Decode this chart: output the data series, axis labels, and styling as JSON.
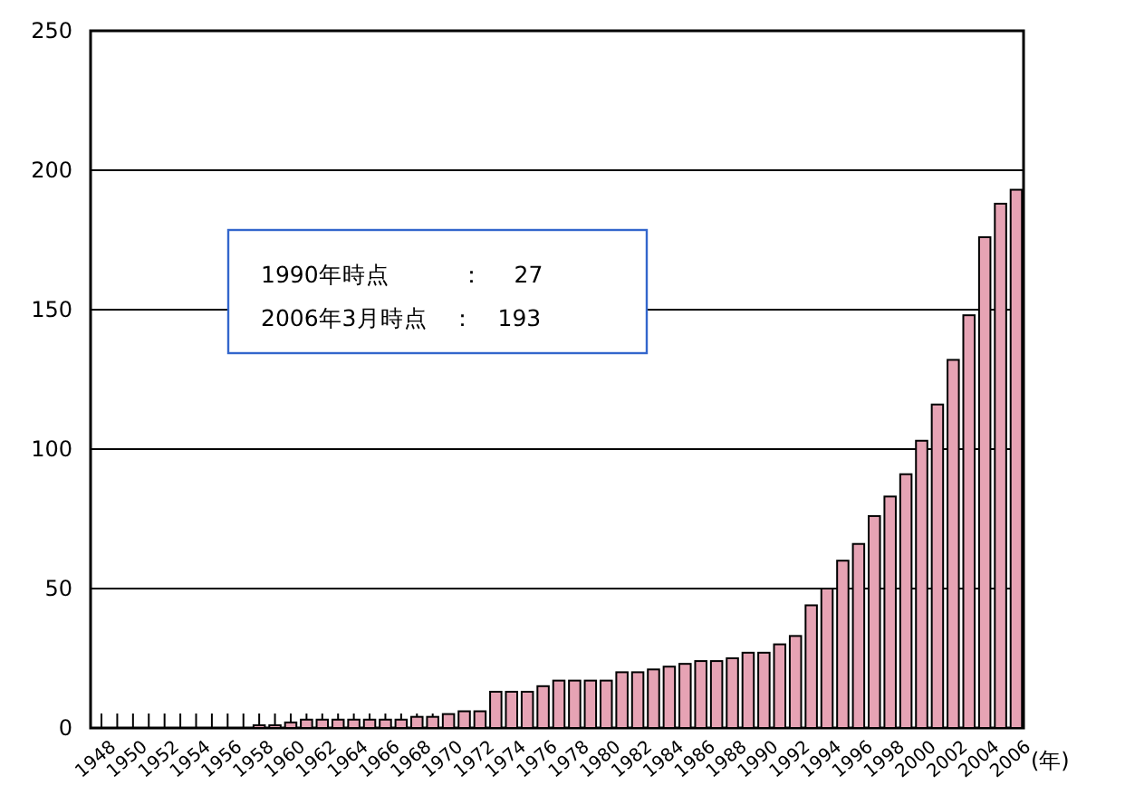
{
  "chart_data": {
    "type": "bar",
    "categories": [
      "1948",
      null,
      "1950",
      null,
      "1952",
      null,
      "1954",
      null,
      "1956",
      null,
      "1958",
      null,
      "1960",
      null,
      "1962",
      null,
      "1964",
      null,
      "1966",
      null,
      "1968",
      null,
      "1970",
      null,
      "1972",
      null,
      "1974",
      null,
      "1976",
      null,
      "1978",
      null,
      "1980",
      null,
      "1982",
      null,
      "1984",
      null,
      "1986",
      null,
      "1988",
      null,
      "1990",
      null,
      "1992",
      null,
      "1994",
      null,
      "1996",
      null,
      "1998",
      null,
      "2000",
      null,
      "2002",
      null,
      "2004",
      null,
      "2006"
    ],
    "values": [
      0,
      0,
      0,
      0,
      0,
      0,
      0,
      0,
      0,
      0,
      1,
      1,
      2,
      3,
      3,
      3,
      3,
      3,
      3,
      3,
      4,
      4,
      5,
      6,
      6,
      13,
      13,
      13,
      15,
      17,
      17,
      17,
      17,
      20,
      20,
      21,
      22,
      23,
      24,
      24,
      25,
      27,
      27,
      30,
      33,
      44,
      50,
      60,
      66,
      76,
      83,
      91,
      103,
      116,
      132,
      148,
      176,
      188,
      193
    ],
    "color": "#e6a3b4",
    "xlabel": "(年)",
    "ylim": [
      0,
      250
    ],
    "yticks": [
      0,
      50,
      100,
      150,
      200,
      250
    ],
    "grid": "y",
    "annotations": [
      "1990年時点　　　：　 27",
      "2006年3月時点　：　193"
    ]
  }
}
